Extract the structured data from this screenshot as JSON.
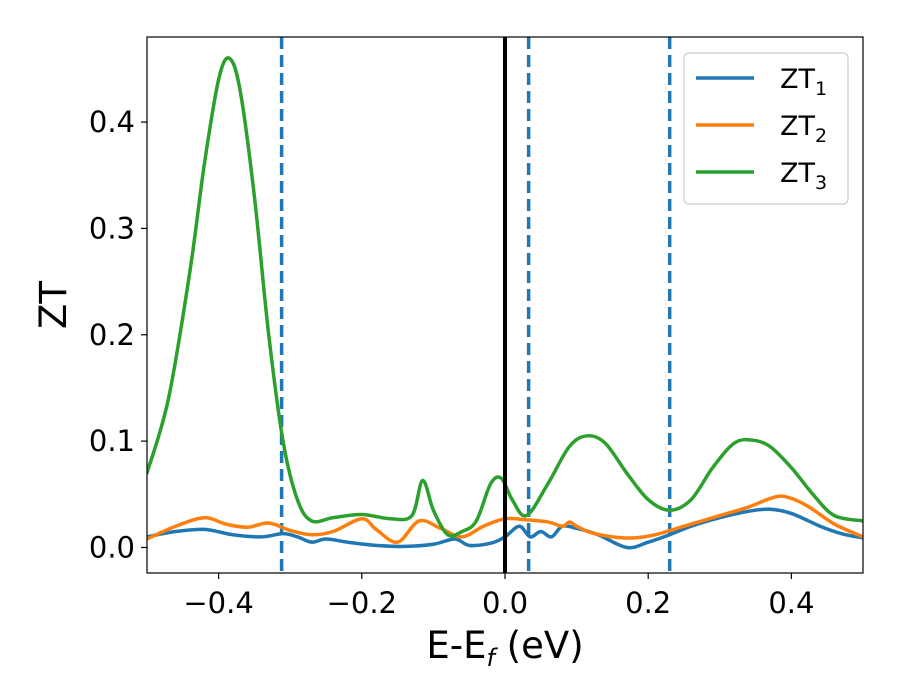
{
  "chart_data": {
    "type": "line",
    "title": "",
    "xlabel": {
      "main": "E-E",
      "sub": "f",
      "unit": " (eV)"
    },
    "ylabel": "ZT",
    "xlim": [
      -0.5,
      0.5
    ],
    "ylim": [
      -0.024,
      0.48
    ],
    "x_ticks": [
      -0.4,
      -0.2,
      0.0,
      0.2,
      0.4
    ],
    "x_tick_labels": [
      "−0.4",
      "−0.2",
      "0.0",
      "0.2",
      "0.4"
    ],
    "y_ticks": [
      0.0,
      0.1,
      0.2,
      0.3,
      0.4
    ],
    "y_tick_labels": [
      "0.0",
      "0.1",
      "0.2",
      "0.3",
      "0.4"
    ],
    "grid": false,
    "legend_position": "top-right",
    "vlines": [
      {
        "x": -0.312,
        "style": "dashed",
        "color": "#1f77b4"
      },
      {
        "x": 0.0,
        "style": "solid",
        "color": "#000000"
      },
      {
        "x": 0.033,
        "style": "dashed",
        "color": "#1f77b4"
      },
      {
        "x": 0.23,
        "style": "dashed",
        "color": "#1f77b4"
      }
    ],
    "series": [
      {
        "name": "ZT",
        "sub": "1",
        "color": "#1f77b4",
        "x": [
          -0.5,
          -0.46,
          -0.42,
          -0.38,
          -0.34,
          -0.31,
          -0.29,
          -0.27,
          -0.25,
          -0.22,
          -0.18,
          -0.14,
          -0.1,
          -0.07,
          -0.05,
          -0.02,
          0.0,
          0.02,
          0.035,
          0.05,
          0.065,
          0.08,
          0.1,
          0.13,
          0.17,
          0.2,
          0.23,
          0.26,
          0.3,
          0.34,
          0.37,
          0.4,
          0.44,
          0.47,
          0.5
        ],
        "y": [
          0.01,
          0.015,
          0.017,
          0.012,
          0.01,
          0.013,
          0.01,
          0.005,
          0.008,
          0.005,
          0.002,
          0.001,
          0.003,
          0.008,
          0.002,
          0.004,
          0.01,
          0.02,
          0.01,
          0.015,
          0.01,
          0.02,
          0.018,
          0.012,
          0.0,
          0.005,
          0.012,
          0.02,
          0.028,
          0.034,
          0.036,
          0.032,
          0.02,
          0.013,
          0.009
        ]
      },
      {
        "name": "ZT",
        "sub": "2",
        "color": "#ff7f0e",
        "x": [
          -0.5,
          -0.46,
          -0.42,
          -0.39,
          -0.36,
          -0.33,
          -0.3,
          -0.27,
          -0.24,
          -0.2,
          -0.18,
          -0.15,
          -0.12,
          -0.09,
          -0.06,
          -0.03,
          0.0,
          0.03,
          0.06,
          0.08,
          0.09,
          0.1,
          0.12,
          0.15,
          0.18,
          0.21,
          0.25,
          0.3,
          0.34,
          0.37,
          0.39,
          0.42,
          0.46,
          0.5
        ],
        "y": [
          0.008,
          0.02,
          0.028,
          0.022,
          0.019,
          0.023,
          0.016,
          0.012,
          0.015,
          0.027,
          0.017,
          0.005,
          0.025,
          0.018,
          0.01,
          0.02,
          0.027,
          0.026,
          0.024,
          0.02,
          0.024,
          0.02,
          0.014,
          0.01,
          0.009,
          0.012,
          0.02,
          0.03,
          0.038,
          0.046,
          0.048,
          0.04,
          0.022,
          0.01
        ]
      },
      {
        "name": "ZT",
        "sub": "3",
        "color": "#2ca02c",
        "x": [
          -0.5,
          -0.47,
          -0.44,
          -0.42,
          -0.4,
          -0.385,
          -0.37,
          -0.35,
          -0.33,
          -0.31,
          -0.29,
          -0.27,
          -0.24,
          -0.2,
          -0.16,
          -0.13,
          -0.115,
          -0.1,
          -0.08,
          -0.06,
          -0.04,
          -0.02,
          -0.005,
          0.01,
          0.03,
          0.06,
          0.09,
          0.115,
          0.14,
          0.17,
          0.2,
          0.23,
          0.26,
          0.29,
          0.32,
          0.345,
          0.37,
          0.4,
          0.43,
          0.46,
          0.5
        ],
        "y": [
          0.07,
          0.14,
          0.26,
          0.36,
          0.44,
          0.46,
          0.43,
          0.33,
          0.2,
          0.1,
          0.045,
          0.025,
          0.028,
          0.031,
          0.027,
          0.03,
          0.063,
          0.035,
          0.012,
          0.015,
          0.025,
          0.06,
          0.065,
          0.045,
          0.03,
          0.06,
          0.095,
          0.105,
          0.098,
          0.07,
          0.045,
          0.035,
          0.045,
          0.075,
          0.098,
          0.101,
          0.095,
          0.075,
          0.05,
          0.03,
          0.025
        ]
      }
    ]
  }
}
